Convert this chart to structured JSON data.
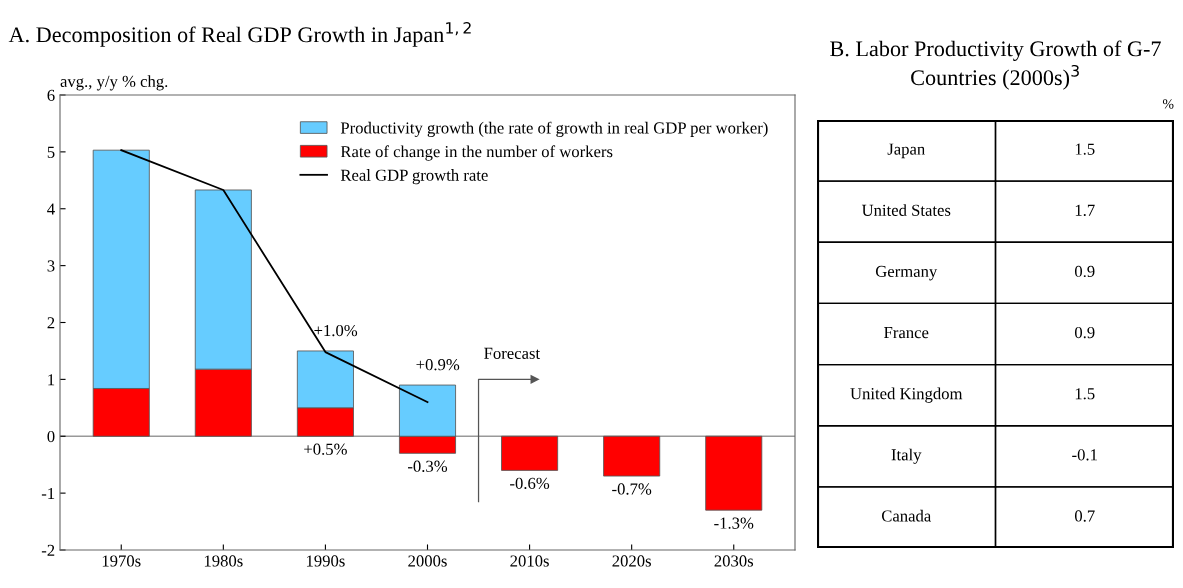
{
  "chart_data": [
    {
      "type": "bar",
      "title": "A. Decomposition of Real GDP Growth in Japan$^{1,2}$",
      "ylabel": "avg., y/y % chg.",
      "categories": [
        "1970s",
        "1980s",
        "1990s",
        "2000s",
        "2010s",
        "2020s",
        "2030s"
      ],
      "stacked": true,
      "series": [
        {
          "name": "Rate of change in the number of workers",
          "color": "#ff0000",
          "values": [
            0.84,
            1.18,
            0.5,
            -0.3,
            -0.6,
            -0.7,
            -1.3
          ],
          "value_labels": [
            null,
            null,
            "+0.5%",
            "-0.3%",
            "-0.6%",
            "-0.7%",
            "-1.3%"
          ]
        },
        {
          "name": "Productivity growth (the rate of growth in real GDP per worker)",
          "color": "#66ccff",
          "values": [
            4.19,
            3.15,
            1.0,
            0.9,
            null,
            null,
            null
          ],
          "value_labels": [
            null,
            null,
            "+1.0%",
            "+0.9%",
            null,
            null,
            null
          ]
        },
        {
          "name": "Real GDP growth rate",
          "type": "line",
          "color": "#000000",
          "values": [
            5.03,
            4.33,
            1.48,
            0.6,
            null,
            null,
            null
          ]
        }
      ],
      "ylim": [
        -2,
        6
      ],
      "yticks": [
        -2,
        -1,
        0,
        1,
        2,
        3,
        4,
        5,
        6
      ],
      "ref_lines": [
        {
          "axis": "y",
          "value": 0,
          "color": "#999999"
        }
      ],
      "grid": false,
      "legend": "top right",
      "annotations": [
        "Forecast"
      ]
    },
    {
      "type": "other",
      "title": "B. Labor Productivity Growth of G-7 Countries (2000s)$^{3}$",
      "categories": [
        "Japan",
        "United States",
        "Germany",
        "France",
        "United Kingdom",
        "Italy",
        "Canada"
      ],
      "values": [
        1.5,
        1.7,
        0.9,
        0.9,
        1.5,
        -0.1,
        0.7
      ],
      "data_labels": true,
      "annotations": [
        "%"
      ]
    }
  ]
}
